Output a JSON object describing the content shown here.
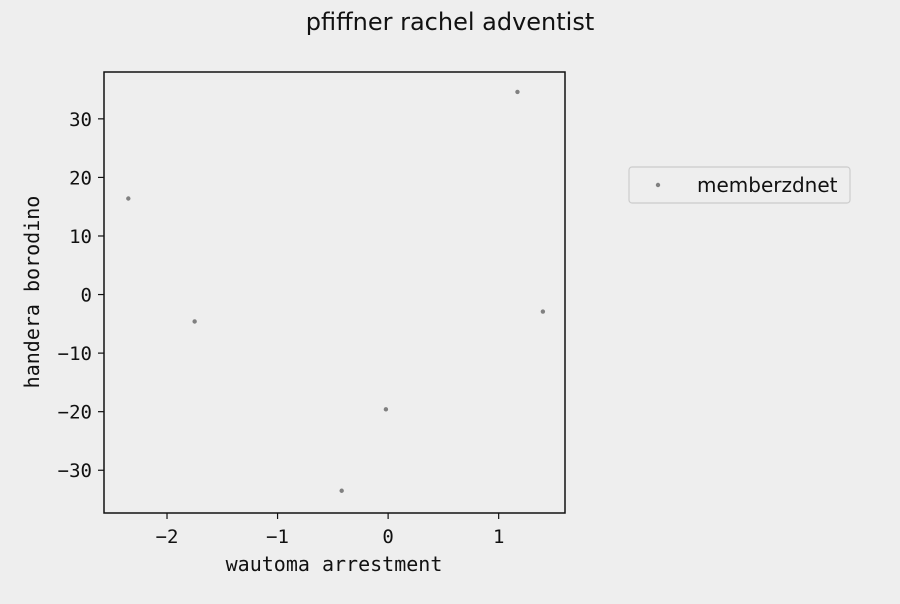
{
  "chart_data": {
    "type": "scatter",
    "title": "pfiffner rachel adventist",
    "xlabel": "wautoma arrestment",
    "ylabel": "handera borodino",
    "xlim": [
      -2.57,
      1.6
    ],
    "ylim": [
      -37.3,
      38.0
    ],
    "xticks": [
      -2,
      -1,
      0,
      1
    ],
    "yticks": [
      -30,
      -20,
      -10,
      0,
      10,
      20,
      30
    ],
    "grid": false,
    "legend_position": "right, outside plot",
    "series": [
      {
        "name": "memberzdnet",
        "color": "#808080",
        "points": [
          {
            "x": -2.35,
            "y": 16.4
          },
          {
            "x": -1.75,
            "y": -4.6
          },
          {
            "x": -0.02,
            "y": -19.6
          },
          {
            "x": -0.42,
            "y": -33.5
          },
          {
            "x": 1.17,
            "y": 34.6
          },
          {
            "x": 1.4,
            "y": -2.9
          }
        ]
      }
    ]
  }
}
